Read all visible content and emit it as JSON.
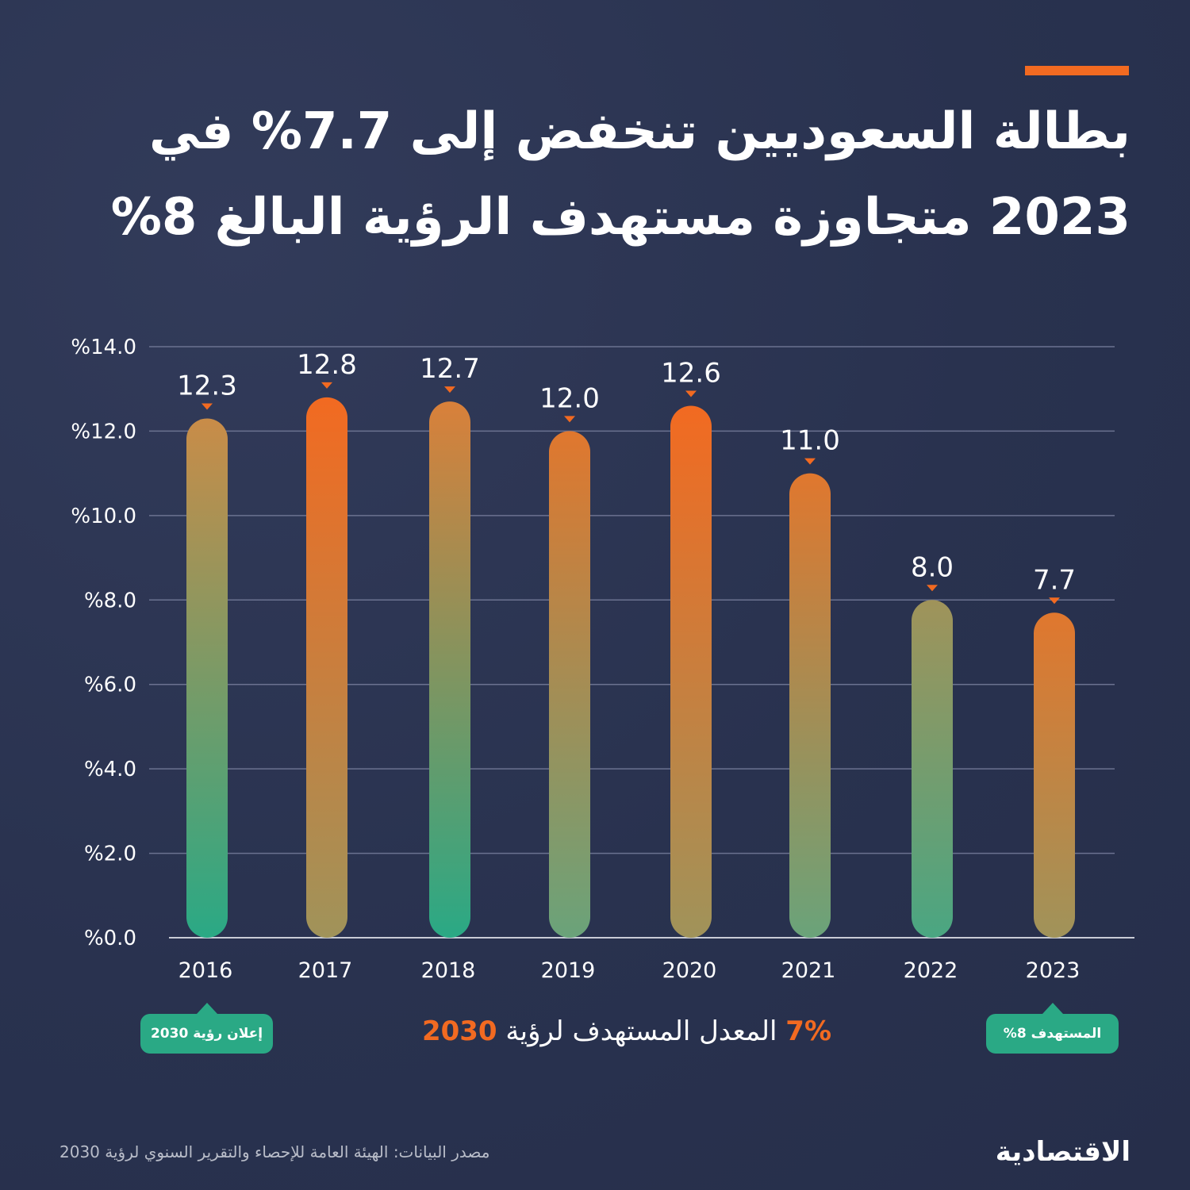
{
  "title": {
    "line1": "بطالة السعوديين تنخفض إلى 7.7% في",
    "line2": "2023 متجاوزة مستهدف الرؤية البالغ 8%"
  },
  "colors": {
    "background": "#29324f",
    "orange": "#f26a21",
    "green": "#2aa985",
    "grid": "#6b7290"
  },
  "chart_data": {
    "type": "bar",
    "categories": [
      "2016",
      "2017",
      "2018",
      "2019",
      "2020",
      "2021",
      "2022",
      "2023"
    ],
    "values": [
      12.3,
      12.8,
      12.7,
      12.0,
      12.6,
      11.0,
      8.0,
      7.7
    ],
    "value_labels": [
      "12.3",
      "12.8",
      "12.7",
      "12.0",
      "12.6",
      "11.0",
      "8.0",
      "7.7"
    ],
    "ylim": [
      0,
      14
    ],
    "yticks": [
      "%0.0",
      "%2.0",
      "%4.0",
      "%6.0",
      "%8.0",
      "%10.0",
      "%12.0",
      "%14.0"
    ],
    "grid": true,
    "title": "",
    "xlabel": "",
    "ylabel": ""
  },
  "annotations": {
    "vision_announcement": "إعلان رؤية 2030",
    "target_badge": "المستهدف 8%",
    "target_rate_value": "7%",
    "target_rate_text": "المعدل المستهدف لرؤية",
    "target_rate_year": "2030"
  },
  "footer": {
    "source": "مصدر البيانات: الهيئة العامة للإحصاء والتقرير السنوي لرؤية 2030",
    "logo": "الاقتصادية"
  }
}
